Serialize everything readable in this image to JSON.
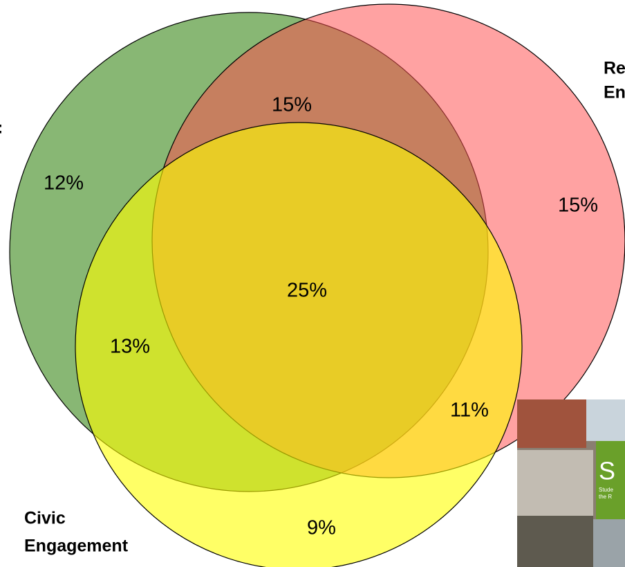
{
  "labels": {
    "top_right_1": "Re",
    "top_right_2": "En",
    "left_cut": ":",
    "bottom_left_1": "Civic",
    "bottom_left_2": "Engagement"
  },
  "regions": {
    "green_red": "15%",
    "green_only": "12%",
    "red_only": "15%",
    "center": "25%",
    "green_yellow": "13%",
    "red_yellow": "11%",
    "yellow_only": "9%"
  },
  "photo": {
    "letter": "S",
    "line_1": "Stude",
    "line_2": "the R"
  }
}
